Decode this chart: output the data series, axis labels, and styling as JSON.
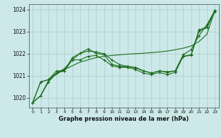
{
  "xlabel": "Graphe pression niveau de la mer (hPa)",
  "bg_color": "#cce8e8",
  "grid_color": "#aacccc",
  "line_color": "#1a6b1a",
  "xlim": [
    -0.5,
    23.5
  ],
  "ylim": [
    1019.55,
    1024.25
  ],
  "yticks": [
    1020,
    1021,
    1022,
    1023,
    1024
  ],
  "xticks": [
    0,
    1,
    2,
    3,
    4,
    5,
    6,
    7,
    8,
    9,
    10,
    11,
    12,
    13,
    14,
    15,
    16,
    17,
    18,
    19,
    20,
    21,
    22,
    23
  ],
  "series": [
    [
      1019.78,
      1020.08,
      1020.72,
      1021.12,
      1021.32,
      1021.72,
      1022.02,
      1022.12,
      1022.08,
      1022.0,
      1021.72,
      1021.5,
      1021.42,
      1021.35,
      1021.22,
      1021.12,
      1021.22,
      1021.18,
      1021.22,
      1021.95,
      1022.18,
      1022.82,
      1023.32,
      1023.95
    ],
    [
      1019.78,
      1020.72,
      1020.82,
      1021.22,
      1021.22,
      1021.82,
      1022.02,
      1022.22,
      1022.02,
      1021.95,
      1021.52,
      1021.42,
      1021.42,
      1021.38,
      1021.22,
      1021.12,
      1021.22,
      1021.15,
      1021.22,
      1021.88,
      1021.95,
      1023.08,
      1023.22,
      1023.98
    ],
    [
      1019.78,
      1020.72,
      1020.82,
      1021.12,
      1021.22,
      1021.72,
      1021.72,
      1021.88,
      1021.92,
      1021.72,
      1021.45,
      1021.38,
      1021.38,
      1021.28,
      1021.12,
      1021.05,
      1021.15,
      1021.05,
      1021.15,
      1021.88,
      1021.92,
      1023.02,
      1023.18,
      1023.92
    ],
    [
      1019.78,
      1020.1,
      1020.78,
      1021.08,
      1021.28,
      1021.45,
      1021.62,
      1021.72,
      1021.82,
      1021.88,
      1021.92,
      1021.95,
      1021.98,
      1022.0,
      1022.02,
      1022.05,
      1022.08,
      1022.12,
      1022.18,
      1022.25,
      1022.35,
      1022.55,
      1022.88,
      1023.95
    ]
  ]
}
